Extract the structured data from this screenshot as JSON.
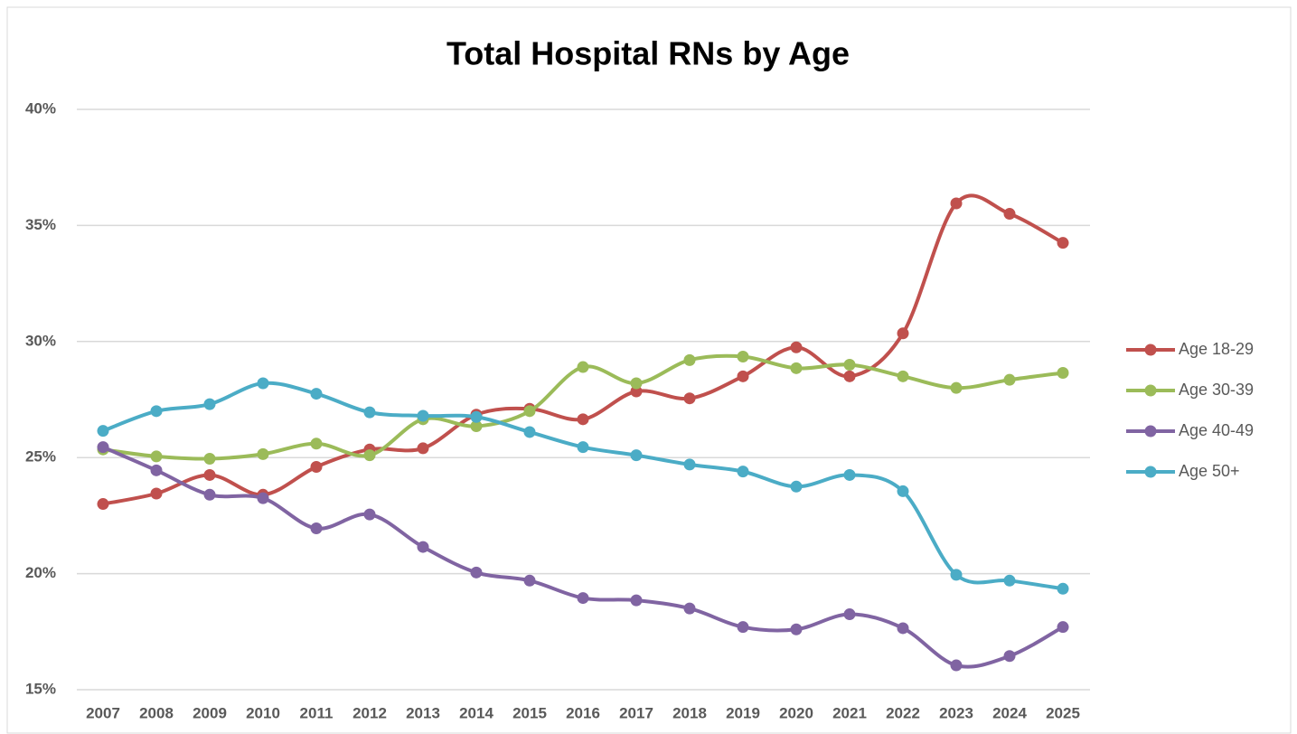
{
  "chart_data": {
    "type": "line",
    "title": "Total Hospital RNs by Age",
    "categories": [
      "2007",
      "2008",
      "2009",
      "2010",
      "2011",
      "2012",
      "2013",
      "2014",
      "2015",
      "2016",
      "2017",
      "2018",
      "2019",
      "2020",
      "2021",
      "2022",
      "2023",
      "2024",
      "2025"
    ],
    "series": [
      {
        "name": "Age 18-29",
        "color": "#c0504d",
        "values": [
          23.0,
          23.45,
          24.25,
          23.4,
          24.6,
          25.35,
          25.4,
          26.85,
          27.1,
          26.65,
          27.85,
          27.55,
          28.5,
          29.75,
          28.5,
          30.35,
          35.95,
          35.5,
          34.25
        ]
      },
      {
        "name": "Age 30-39",
        "color": "#9bbb59",
        "values": [
          25.35,
          25.05,
          24.95,
          25.15,
          25.6,
          25.1,
          26.65,
          26.35,
          27.0,
          28.9,
          28.2,
          29.2,
          29.35,
          28.85,
          29.0,
          28.5,
          28.0,
          28.35,
          28.65
        ]
      },
      {
        "name": "Age 40-49",
        "color": "#8064a2",
        "values": [
          25.45,
          24.45,
          23.4,
          23.25,
          21.95,
          22.55,
          21.15,
          20.05,
          19.7,
          18.95,
          18.85,
          18.5,
          17.7,
          17.6,
          18.25,
          17.65,
          16.05,
          16.45,
          17.7
        ]
      },
      {
        "name": "Age 50+",
        "color": "#4bacc6",
        "values": [
          26.15,
          27.0,
          27.3,
          28.2,
          27.75,
          26.95,
          26.8,
          26.75,
          26.1,
          25.45,
          25.1,
          24.7,
          24.4,
          23.75,
          24.25,
          23.55,
          19.95,
          19.7,
          19.35
        ]
      }
    ],
    "ylim": [
      15,
      40
    ],
    "yticks": [
      {
        "value": 15,
        "label": "15%"
      },
      {
        "value": 20,
        "label": "20%"
      },
      {
        "value": 25,
        "label": "25%"
      },
      {
        "value": 30,
        "label": "30%"
      },
      {
        "value": 35,
        "label": "35%"
      },
      {
        "value": 40,
        "label": "40%"
      }
    ],
    "grid": true,
    "legend": "right",
    "smooth": true
  }
}
